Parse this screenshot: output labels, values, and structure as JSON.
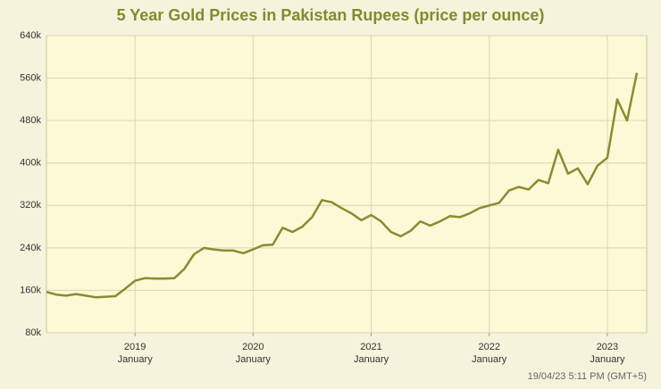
{
  "chart_data": {
    "type": "line",
    "title": "5 Year Gold Prices in Pakistan Rupees (price per ounce)",
    "timestamp": "19/04/23 5:11 PM (GMT+5)",
    "x": [
      "2018-04",
      "2018-05",
      "2018-06",
      "2018-07",
      "2018-08",
      "2018-09",
      "2018-10",
      "2018-11",
      "2018-12",
      "2019-01",
      "2019-02",
      "2019-03",
      "2019-04",
      "2019-05",
      "2019-06",
      "2019-07",
      "2019-08",
      "2019-09",
      "2019-10",
      "2019-11",
      "2019-12",
      "2020-01",
      "2020-02",
      "2020-03",
      "2020-04",
      "2020-05",
      "2020-06",
      "2020-07",
      "2020-08",
      "2020-09",
      "2020-10",
      "2020-11",
      "2020-12",
      "2021-01",
      "2021-02",
      "2021-03",
      "2021-04",
      "2021-05",
      "2021-06",
      "2021-07",
      "2021-08",
      "2021-09",
      "2021-10",
      "2021-11",
      "2021-12",
      "2022-01",
      "2022-02",
      "2022-03",
      "2022-04",
      "2022-05",
      "2022-06",
      "2022-07",
      "2022-08",
      "2022-09",
      "2022-10",
      "2022-11",
      "2022-12",
      "2023-01",
      "2023-02",
      "2023-03",
      "2023-04"
    ],
    "values": [
      157000,
      152000,
      150000,
      153000,
      150000,
      147000,
      148000,
      149000,
      163000,
      178000,
      183000,
      182000,
      182000,
      183000,
      200000,
      228000,
      240000,
      237000,
      235000,
      235000,
      230000,
      237000,
      245000,
      246000,
      278000,
      270000,
      280000,
      298000,
      330000,
      326000,
      315000,
      305000,
      292000,
      302000,
      290000,
      270000,
      262000,
      272000,
      290000,
      282000,
      290000,
      300000,
      298000,
      305000,
      315000,
      320000,
      325000,
      348000,
      355000,
      350000,
      368000,
      362000,
      425000,
      380000,
      390000,
      360000,
      395000,
      410000,
      520000,
      480000,
      570000
    ],
    "color": "#8c8a32",
    "xlim": [
      "2018-04",
      "2023-05"
    ],
    "xticks": [
      {
        "value": "2019-01",
        "label": "2019 January"
      },
      {
        "value": "2020-01",
        "label": "2020 January"
      },
      {
        "value": "2021-01",
        "label": "2021 January"
      },
      {
        "value": "2022-01",
        "label": "2022 January"
      },
      {
        "value": "2023-01",
        "label": "2023 January"
      }
    ],
    "ylim": [
      80000,
      640000
    ],
    "yticks": [
      {
        "value": 80000,
        "label": "80k"
      },
      {
        "value": 160000,
        "label": "160k"
      },
      {
        "value": 240000,
        "label": "240k"
      },
      {
        "value": 320000,
        "label": "320k"
      },
      {
        "value": 400000,
        "label": "400k"
      },
      {
        "value": 480000,
        "label": "480k"
      },
      {
        "value": 560000,
        "label": "560k"
      },
      {
        "value": 640000,
        "label": "640k"
      }
    ],
    "grid": true
  }
}
